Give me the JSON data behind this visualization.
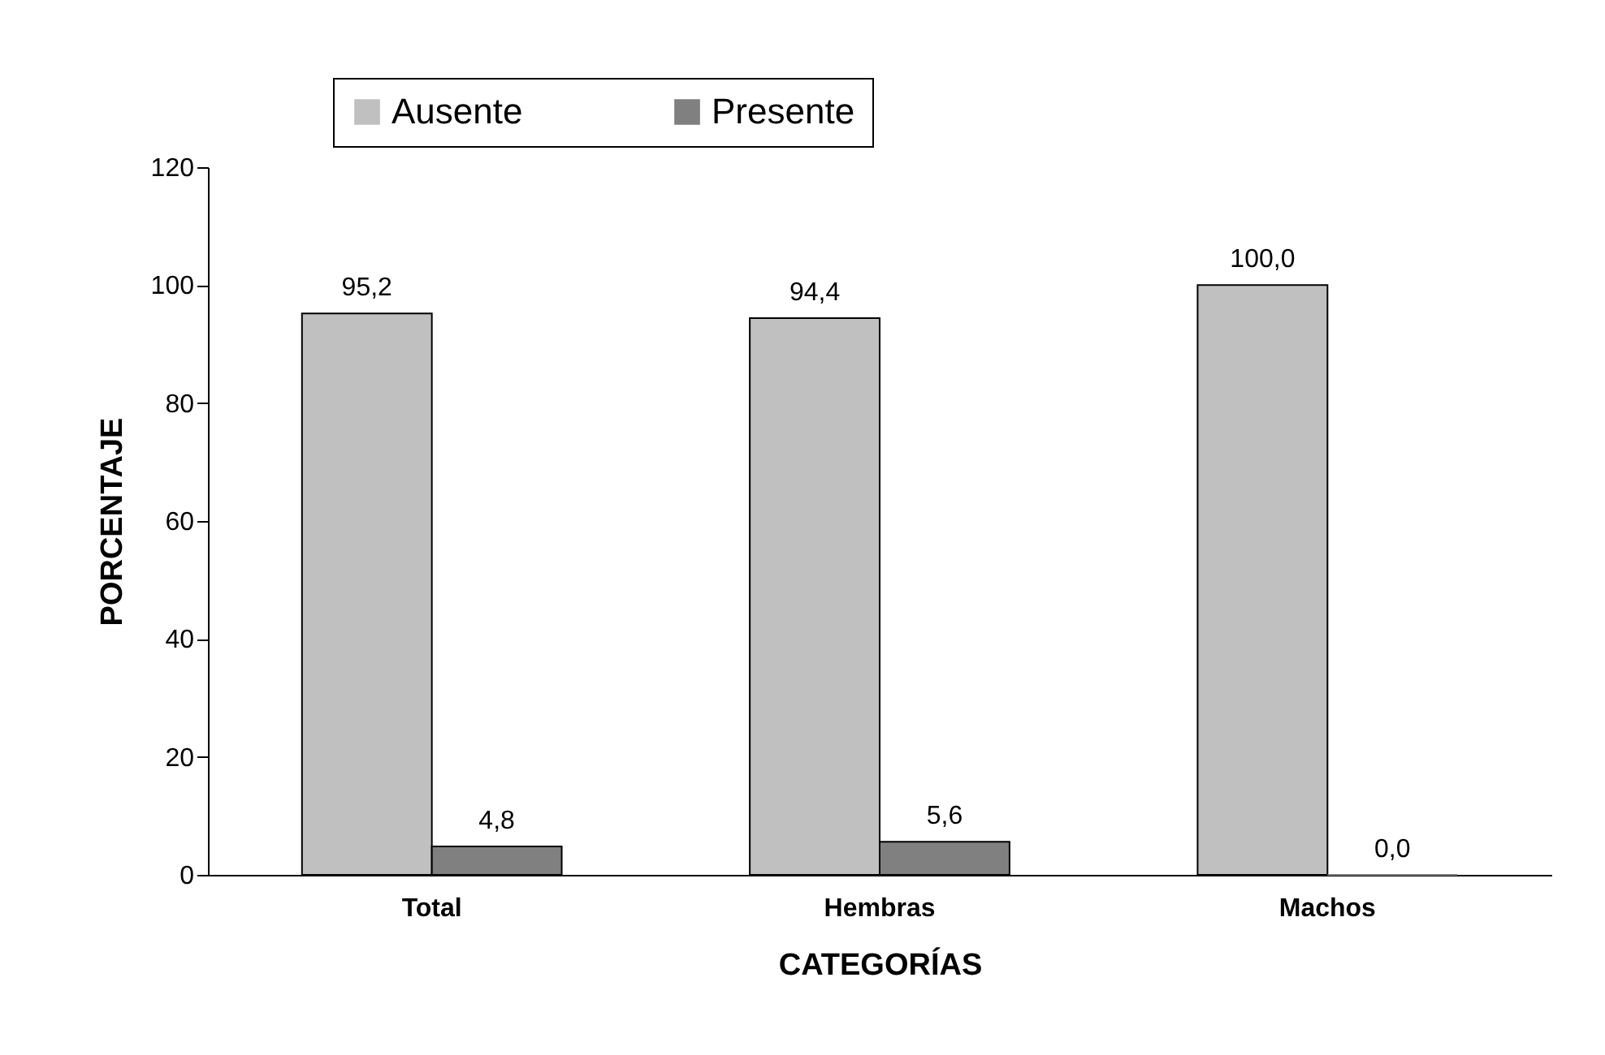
{
  "chart_data": {
    "type": "bar",
    "xlabel": "CATEGORÍAS",
    "ylabel": "PORCENTAJE",
    "categories": [
      "Total",
      "Hembras",
      "Machos"
    ],
    "series": [
      {
        "name": "Ausente",
        "color": "#c0c0c0",
        "values": [
          95.2,
          94.4,
          100.0
        ],
        "value_labels": [
          "95,2",
          "94,4",
          "100,0"
        ]
      },
      {
        "name": "Presente",
        "color": "#808080",
        "values": [
          4.8,
          5.6,
          0.0
        ],
        "value_labels": [
          "4,8",
          "5,6",
          "0,0"
        ]
      }
    ],
    "ylim": [
      0,
      120
    ],
    "yticks": [
      0,
      20,
      40,
      60,
      80,
      100,
      120
    ],
    "grid": false,
    "legend": "top"
  }
}
